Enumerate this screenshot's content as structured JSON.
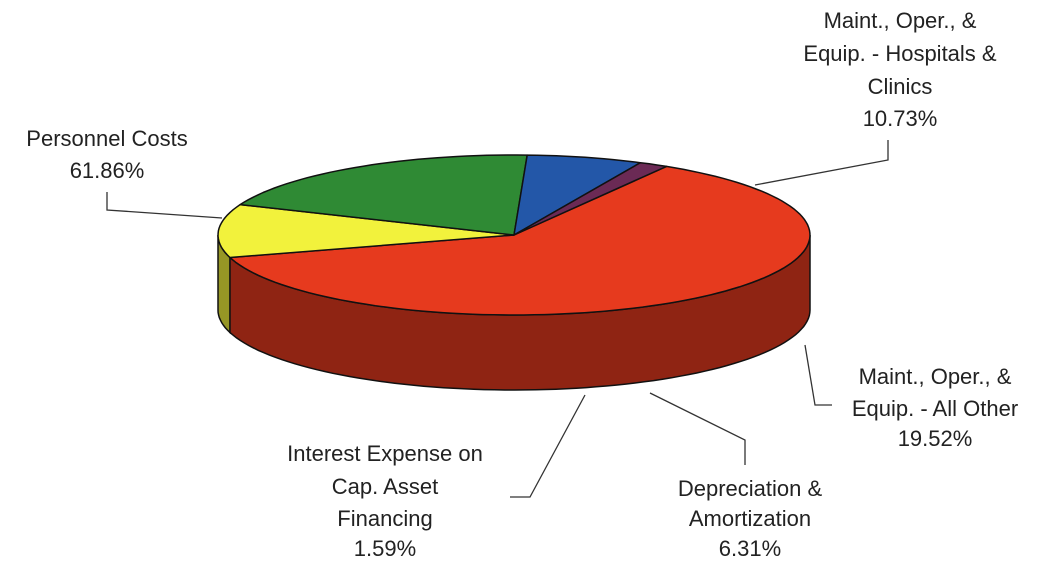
{
  "chart_data": {
    "type": "pie3d",
    "categories": [
      [
        "Personnel Costs"
      ],
      [
        "Maint., Oper., &",
        "Equip. - Hospitals &",
        "Clinics"
      ],
      [
        "Maint., Oper., &",
        "Equip. - All Other"
      ],
      [
        "Depreciation &",
        "Amortization"
      ],
      [
        "Interest Expense on",
        "Cap. Asset",
        "Financing"
      ]
    ],
    "values": [
      61.86,
      10.73,
      19.52,
      6.31,
      1.59
    ],
    "value_labels": [
      "61.86%",
      "10.73%",
      "19.52%",
      "6.31%",
      "1.59%"
    ],
    "colors": [
      "#e63a1e",
      "#f2f23c",
      "#2f8a34",
      "#2357a8",
      "#6b2a55"
    ]
  }
}
